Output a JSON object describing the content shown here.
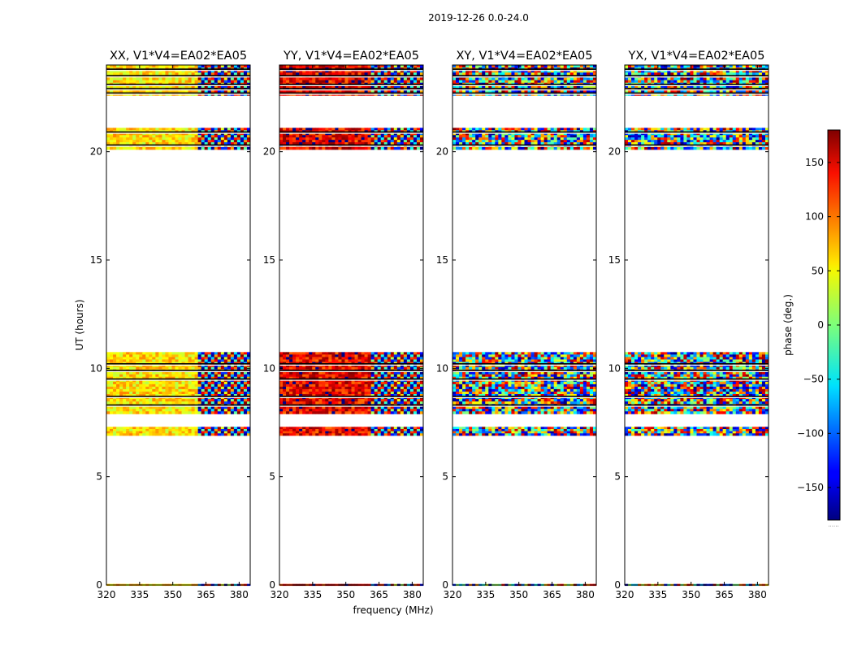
{
  "suptitle": "2019-12-26 0.0-24.0",
  "xlabel": "frequency (MHz)",
  "ylabel": "UT (hours)",
  "colorbar_label": "phase (deg.)",
  "colorbar_footnote": "......",
  "chart_data": [
    {
      "type": "heatmap",
      "title": "XX, V1*V4=EA02*EA05",
      "xlim": [
        320,
        385
      ],
      "ylim": [
        0,
        24
      ],
      "xticks": [
        "320",
        "335",
        "350",
        "365",
        "380"
      ],
      "yticks": [
        "0",
        "5",
        "10",
        "15",
        "20"
      ],
      "base_phase": 55,
      "base_phase_high_freq": 55,
      "noise": 35,
      "fringe_start_mhz": 360
    },
    {
      "type": "heatmap",
      "title": "YY, V1*V4=EA02*EA05",
      "xlim": [
        320,
        385
      ],
      "ylim": [
        0,
        24
      ],
      "xticks": [
        "320",
        "335",
        "350",
        "365",
        "380"
      ],
      "yticks": [
        "0",
        "5",
        "10",
        "15",
        "20"
      ],
      "base_phase": 140,
      "base_phase_high_freq": 100,
      "noise": 45,
      "fringe_start_mhz": 361
    },
    {
      "type": "heatmap",
      "title": "XY, V1*V4=EA02*EA05",
      "xlim": [
        320,
        385
      ],
      "ylim": [
        0,
        24
      ],
      "xticks": [
        "320",
        "335",
        "350",
        "365",
        "380"
      ],
      "yticks": [
        "0",
        "5",
        "10",
        "15",
        "20"
      ],
      "base_phase": 0,
      "base_phase_high_freq": 0,
      "noise": 180,
      "fringe_start_mhz": 385
    },
    {
      "type": "heatmap",
      "title": "YX, V1*V4=EA02*EA05",
      "xlim": [
        320,
        385
      ],
      "ylim": [
        0,
        24
      ],
      "xticks": [
        "320",
        "335",
        "350",
        "365",
        "380"
      ],
      "yticks": [
        "0",
        "5",
        "10",
        "15",
        "20"
      ],
      "base_phase": 0,
      "base_phase_high_freq": 0,
      "noise": 180,
      "fringe_start_mhz": 385
    }
  ],
  "data_bands_ut": [
    [
      0.0,
      0.05
    ],
    [
      6.9,
      7.3
    ],
    [
      7.9,
      10.75
    ],
    [
      20.1,
      21.1
    ],
    [
      22.6,
      24.0
    ]
  ],
  "gap_lines_ut": [
    8.3,
    8.7,
    9.5,
    9.9,
    10.2,
    20.3,
    20.9,
    22.7,
    22.9,
    23.1,
    23.5,
    23.8
  ],
  "colorbar": {
    "range": [
      -180,
      180
    ],
    "ticks": [
      "150",
      "100",
      "50",
      "0",
      "−50",
      "−100",
      "−150"
    ],
    "tick_values": [
      150,
      100,
      50,
      0,
      -50,
      -100,
      -150
    ]
  }
}
